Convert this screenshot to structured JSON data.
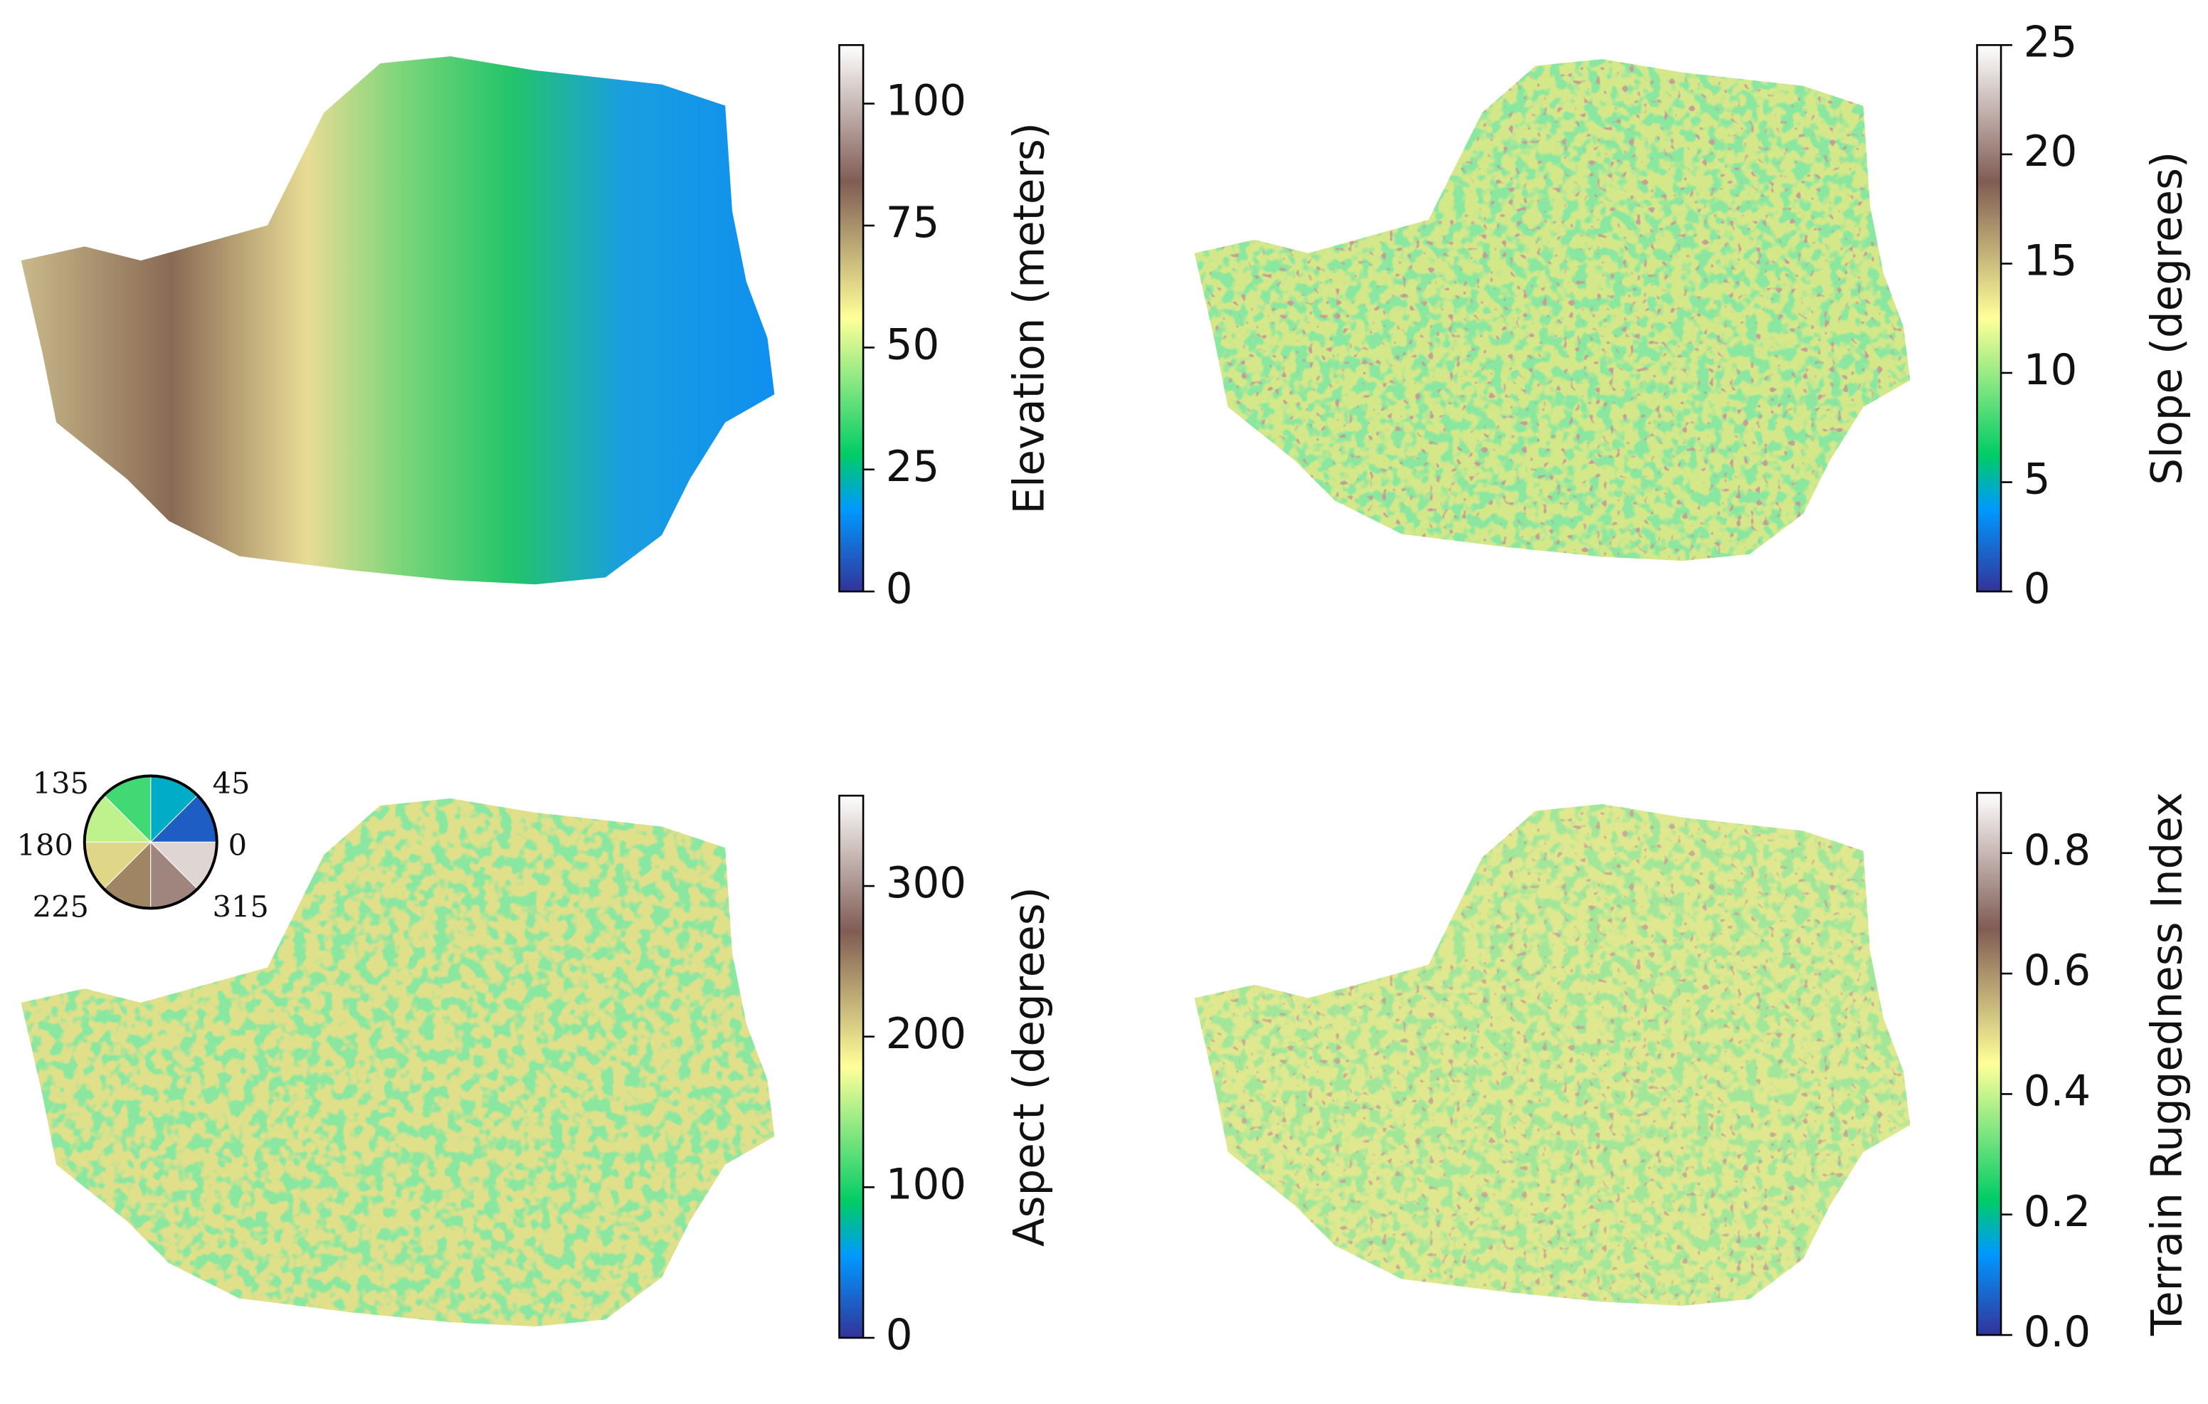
{
  "chart_data": [
    {
      "type": "map",
      "colormap": "terrain",
      "colorbar_label": "Elevation (meters)",
      "clim": [
        0,
        112
      ],
      "cticks": [
        0,
        25,
        50,
        75,
        100
      ]
    },
    {
      "type": "map",
      "colormap": "terrain",
      "colorbar_label": "Slope (degrees)",
      "clim": [
        0,
        25
      ],
      "cticks": [
        0,
        5,
        10,
        15,
        20,
        25
      ]
    },
    {
      "type": "map",
      "colormap": "terrain",
      "colorbar_label": "Aspect (degrees)",
      "clim": [
        0,
        360
      ],
      "cticks": [
        0,
        100,
        200,
        300
      ],
      "wheel_labels": [
        135,
        45,
        180,
        0,
        225,
        315
      ]
    },
    {
      "type": "map",
      "colormap": "terrain",
      "colorbar_label": "Terrain Ruggedness Index",
      "clim": [
        0,
        0.9
      ],
      "cticks": [
        {
          "value": 0,
          "label": "0.0"
        },
        0.2,
        0.4,
        0.6,
        0.8
      ]
    }
  ]
}
